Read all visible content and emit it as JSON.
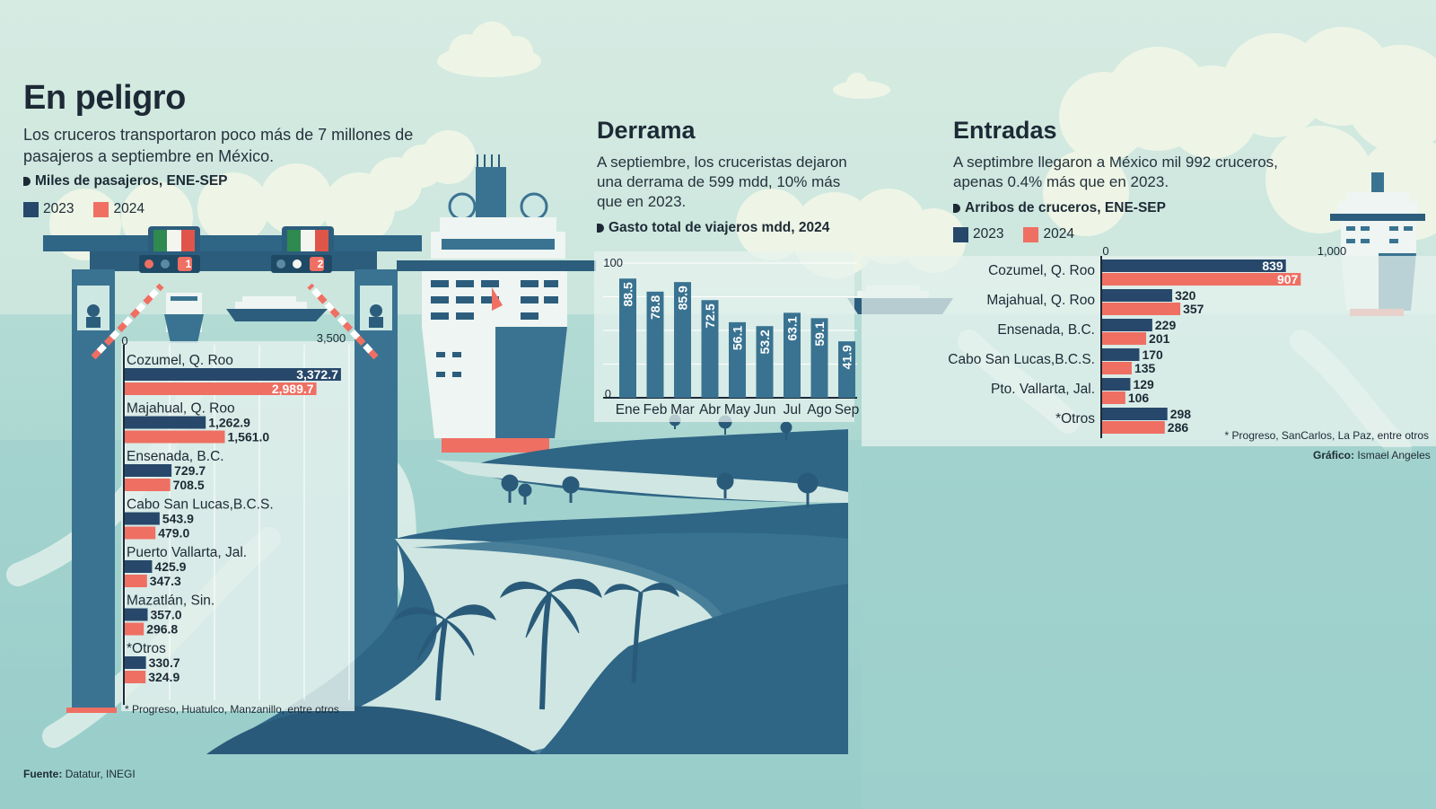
{
  "header": {
    "title": "En peligro",
    "subtitle": "Los cruceros transportaron poco más de 7 millones de pasajeros a septiembre en México.",
    "unit": "Miles de pasajeros, ENE-SEP"
  },
  "legend": {
    "y2023": "2023",
    "y2024": "2024"
  },
  "colors": {
    "y2023": "#27486a",
    "y2024": "#ef6f63",
    "derrama_bar": "#3a7391"
  },
  "gates": {
    "left_number": "1",
    "right_number": "2"
  },
  "derrama": {
    "title": "Derrama",
    "description": "A septiembre, los cruceristas dejaron una derrama de 599 mdd, 10% más que en 2023.",
    "unit": "Gasto total de viajeros mdd, 2024"
  },
  "entradas": {
    "title": "Entradas",
    "description": "A septimbre llegaron a México mil 992 cruceros, apenas 0.4% más que en 2023.",
    "unit": "Arribos de cruceros, ENE-SEP"
  },
  "footer": {
    "source_label": "Fuente:",
    "source": "Datatur, INEGI",
    "credit_label": "Gráfico:",
    "credit": "Ismael Angeles"
  },
  "chart_data": [
    {
      "type": "bar",
      "orientation": "horizontal",
      "categories": [
        "Cozumel, Q. Roo",
        "Majahual, Q. Roo",
        "Ensenada, B.C.",
        "Cabo San Lucas,B.C.S.",
        "Puerto Vallarta, Jal.",
        "Mazatlán, Sin.",
        "*Otros"
      ],
      "series": [
        {
          "name": "2023",
          "values": [
            3372.7,
            1262.9,
            729.7,
            543.9,
            425.9,
            357.0,
            330.7
          ],
          "labels": [
            "3,372.7",
            "1,262.9",
            "729.7",
            "543.9",
            "425.9",
            "357.0",
            "330.7"
          ]
        },
        {
          "name": "2024",
          "values": [
            2989.7,
            1561.0,
            708.5,
            479.0,
            347.3,
            296.8,
            324.9
          ],
          "labels": [
            "2,989.7",
            "1,561.0",
            "708.5",
            "479.0",
            "347.3",
            "296.8",
            "324.9"
          ]
        }
      ],
      "xlim": [
        0,
        3500
      ],
      "ticks": [
        "0",
        "3,500"
      ],
      "note": "* Progreso, Huatulco, Manzanillo, entre otros"
    },
    {
      "type": "bar",
      "orientation": "vertical",
      "categories": [
        "Ene",
        "Feb",
        "Mar",
        "Abr",
        "May",
        "Jun",
        "Jul",
        "Ago",
        "Sep"
      ],
      "values": [
        88.5,
        78.8,
        85.9,
        72.5,
        56.1,
        53.2,
        63.1,
        59.1,
        41.9
      ],
      "labels": [
        "88.5",
        "78.8",
        "85.9",
        "72.5",
        "56.1",
        "53.2",
        "63.1",
        "59.1",
        "41.9"
      ],
      "ylim": [
        0,
        100
      ],
      "ticks": [
        "0",
        "100"
      ]
    },
    {
      "type": "bar",
      "orientation": "horizontal",
      "categories": [
        "Cozumel, Q. Roo",
        "Majahual, Q. Roo",
        "Ensenada, B.C.",
        "Cabo San Lucas,B.C.S.",
        "Pto. Vallarta, Jal.",
        "*Otros"
      ],
      "series": [
        {
          "name": "2023",
          "values": [
            839,
            320,
            229,
            170,
            129,
            298
          ],
          "labels": [
            "839",
            "320",
            "229",
            "170",
            "129",
            "298"
          ]
        },
        {
          "name": "2024",
          "values": [
            907,
            357,
            201,
            135,
            106,
            286
          ],
          "labels": [
            "907",
            "357",
            "201",
            "135",
            "106",
            "286"
          ]
        }
      ],
      "xlim": [
        0,
        1000
      ],
      "ticks": [
        "0",
        "1,000"
      ],
      "note": "* Progreso, SanCarlos, La Paz, entre otros"
    }
  ]
}
